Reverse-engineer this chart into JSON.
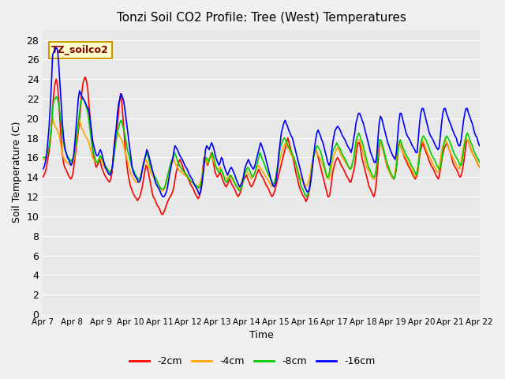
{
  "title": "Tonzi Soil CO2 Profile: Tree (West) Temperatures",
  "xlabel": "Time",
  "ylabel": "Soil Temperature (C)",
  "annotation": "TZ_soilco2",
  "ylim": [
    0,
    29
  ],
  "yticks": [
    0,
    2,
    4,
    6,
    8,
    10,
    12,
    14,
    16,
    18,
    20,
    22,
    24,
    26,
    28
  ],
  "legend_labels": [
    "-2cm",
    "-4cm",
    "-8cm",
    "-16cm"
  ],
  "legend_colors": [
    "#ff0000",
    "#ffa500",
    "#00cc00",
    "#0000ff"
  ],
  "x_tick_labels": [
    "Apr 7",
    "Apr 8",
    "Apr 9",
    "Apr 10",
    "Apr 11",
    "Apr 12",
    "Apr 13",
    "Apr 14",
    "Apr 15",
    "Apr 16",
    "Apr 17",
    "Apr 18",
    "Apr 19",
    "Apr 20",
    "Apr 21",
    "Apr 22"
  ],
  "series": {
    "s2cm": [
      14.0,
      14.2,
      14.5,
      15.0,
      15.8,
      16.5,
      17.5,
      19.0,
      21.0,
      22.5,
      23.5,
      24.0,
      23.5,
      22.0,
      20.0,
      18.0,
      16.5,
      15.5,
      15.0,
      14.8,
      14.5,
      14.2,
      14.0,
      13.8,
      14.0,
      14.5,
      15.5,
      16.5,
      17.5,
      18.5,
      19.5,
      21.0,
      22.5,
      23.5,
      24.0,
      24.2,
      23.8,
      23.0,
      21.5,
      20.0,
      18.5,
      17.0,
      16.0,
      15.5,
      15.0,
      15.2,
      15.5,
      15.8,
      15.2,
      14.8,
      14.5,
      14.2,
      14.0,
      13.8,
      13.6,
      13.5,
      13.8,
      14.5,
      16.0,
      17.5,
      18.5,
      19.0,
      20.0,
      21.5,
      22.5,
      21.8,
      20.2,
      18.5,
      16.8,
      15.5,
      14.5,
      13.8,
      13.2,
      12.8,
      12.5,
      12.2,
      12.0,
      11.8,
      11.6,
      11.8,
      12.0,
      12.5,
      13.0,
      13.8,
      14.5,
      15.2,
      15.0,
      14.5,
      13.8,
      13.2,
      12.5,
      12.0,
      11.8,
      11.5,
      11.2,
      11.0,
      10.8,
      10.5,
      10.2,
      10.2,
      10.5,
      10.8,
      11.2,
      11.5,
      11.8,
      12.0,
      12.2,
      12.5,
      13.0,
      13.8,
      14.5,
      15.0,
      15.5,
      15.8,
      15.5,
      15.2,
      14.8,
      14.5,
      14.2,
      14.0,
      13.8,
      13.5,
      13.2,
      13.0,
      12.8,
      12.5,
      12.2,
      12.0,
      11.8,
      12.0,
      12.5,
      13.5,
      15.0,
      16.0,
      15.8,
      15.5,
      15.2,
      15.8,
      16.0,
      16.5,
      15.8,
      15.2,
      14.5,
      14.2,
      14.0,
      14.2,
      14.5,
      14.2,
      13.8,
      13.5,
      13.2,
      13.0,
      13.2,
      13.5,
      13.8,
      13.5,
      13.2,
      13.0,
      12.8,
      12.5,
      12.2,
      12.0,
      12.2,
      12.5,
      13.0,
      13.5,
      13.8,
      14.0,
      14.2,
      13.8,
      13.5,
      13.2,
      13.0,
      13.2,
      13.5,
      13.8,
      14.2,
      14.5,
      14.8,
      14.5,
      14.2,
      14.0,
      13.8,
      13.5,
      13.2,
      13.0,
      12.8,
      12.5,
      12.2,
      12.0,
      12.2,
      12.5,
      13.0,
      13.5,
      14.0,
      14.5,
      15.0,
      15.5,
      16.0,
      16.5,
      17.0,
      17.5,
      18.0,
      17.5,
      17.0,
      16.5,
      16.0,
      15.5,
      14.8,
      14.2,
      13.8,
      13.2,
      12.8,
      12.5,
      12.2,
      12.0,
      11.8,
      11.5,
      11.8,
      12.2,
      13.0,
      14.0,
      15.0,
      16.0,
      16.5,
      16.8,
      16.5,
      16.0,
      15.5,
      15.0,
      14.5,
      14.0,
      13.5,
      13.0,
      12.5,
      12.0,
      12.0,
      12.5,
      13.5,
      14.5,
      15.0,
      15.5,
      15.8,
      16.0,
      15.8,
      15.5,
      15.2,
      15.0,
      14.8,
      14.5,
      14.2,
      14.0,
      13.8,
      13.5,
      13.5,
      14.0,
      14.5,
      15.0,
      16.0,
      17.0,
      17.5,
      17.5,
      16.8,
      16.0,
      15.5,
      15.0,
      14.5,
      14.0,
      13.5,
      13.0,
      12.8,
      12.5,
      12.2,
      12.0,
      12.5,
      13.5,
      15.0,
      16.5,
      17.5,
      17.5,
      17.0,
      16.5,
      16.0,
      15.5,
      15.0,
      14.8,
      14.5,
      14.2,
      14.0,
      13.8,
      14.0,
      14.5,
      15.5,
      17.0,
      17.5,
      17.2,
      16.8,
      16.5,
      16.0,
      15.8,
      15.5,
      15.2,
      15.0,
      14.8,
      14.5,
      14.2,
      14.0,
      13.8,
      14.0,
      14.5,
      15.5,
      16.5,
      17.0,
      17.5,
      17.2,
      16.8,
      16.5,
      16.2,
      15.8,
      15.5,
      15.2,
      15.0,
      14.8,
      14.5,
      14.2,
      14.0,
      13.8,
      14.2,
      15.0,
      15.8,
      16.5,
      17.0,
      17.2,
      17.5,
      17.2,
      16.8,
      16.5,
      16.0,
      15.5,
      15.2,
      15.0,
      14.8,
      14.5,
      14.2,
      14.0,
      14.2,
      14.8,
      15.5,
      16.5,
      17.5,
      17.8,
      17.5,
      17.2,
      16.8,
      16.5,
      16.2,
      16.0,
      15.8,
      15.5,
      15.2,
      15.0
    ],
    "s4cm": [
      15.8,
      15.8,
      15.8,
      16.0,
      16.5,
      17.2,
      18.0,
      19.2,
      20.5,
      19.5,
      19.2,
      19.0,
      18.8,
      18.5,
      17.8,
      17.2,
      16.5,
      16.0,
      15.8,
      15.6,
      15.5,
      15.4,
      15.3,
      15.2,
      15.3,
      15.5,
      16.0,
      17.0,
      18.0,
      19.0,
      20.0,
      19.5,
      19.0,
      18.8,
      18.5,
      18.2,
      18.0,
      17.8,
      17.5,
      17.0,
      16.5,
      16.0,
      15.8,
      15.6,
      15.5,
      15.5,
      15.8,
      16.0,
      15.8,
      15.5,
      15.2,
      15.0,
      14.8,
      14.6,
      14.5,
      14.4,
      14.5,
      14.8,
      15.5,
      16.5,
      17.5,
      18.0,
      18.5,
      18.2,
      18.0,
      17.8,
      17.5,
      17.0,
      16.5,
      16.0,
      15.5,
      15.0,
      14.5,
      14.2,
      14.0,
      13.8,
      13.6,
      13.5,
      13.4,
      13.5,
      13.8,
      14.2,
      14.8,
      15.2,
      15.5,
      15.8,
      15.5,
      15.2,
      14.8,
      14.5,
      14.2,
      14.0,
      13.8,
      13.6,
      13.4,
      13.2,
      13.0,
      12.8,
      12.6,
      12.6,
      12.8,
      13.0,
      13.5,
      14.0,
      14.5,
      15.0,
      15.2,
      15.5,
      15.8,
      15.5,
      15.2,
      15.0,
      14.8,
      14.6,
      14.5,
      14.4,
      14.3,
      14.2,
      14.1,
      14.0,
      13.9,
      13.8,
      13.6,
      13.5,
      13.4,
      13.3,
      13.2,
      13.1,
      13.0,
      13.2,
      13.5,
      14.0,
      14.8,
      15.5,
      15.8,
      15.6,
      15.4,
      15.8,
      16.0,
      16.2,
      15.8,
      15.5,
      15.2,
      15.0,
      14.8,
      14.8,
      15.0,
      14.8,
      14.5,
      14.2,
      14.0,
      13.8,
      13.9,
      14.0,
      14.2,
      14.0,
      13.8,
      13.6,
      13.4,
      13.2,
      13.0,
      12.8,
      13.0,
      13.2,
      13.5,
      14.0,
      14.2,
      14.5,
      14.6,
      14.4,
      14.2,
      14.0,
      13.8,
      14.0,
      14.2,
      14.5,
      14.8,
      15.0,
      15.2,
      15.0,
      14.8,
      14.6,
      14.4,
      14.2,
      14.0,
      13.8,
      13.6,
      13.4,
      13.2,
      13.0,
      13.2,
      13.5,
      14.0,
      14.5,
      15.0,
      15.5,
      16.0,
      16.5,
      17.0,
      17.2,
      17.5,
      17.2,
      17.0,
      16.8,
      16.5,
      16.2,
      16.0,
      15.8,
      15.5,
      15.2,
      14.8,
      14.4,
      14.0,
      13.8,
      13.6,
      13.4,
      13.2,
      13.0,
      13.2,
      13.5,
      14.0,
      14.8,
      15.5,
      16.0,
      16.5,
      16.8,
      16.5,
      16.2,
      16.0,
      15.8,
      15.5,
      15.2,
      14.8,
      14.4,
      14.0,
      13.8,
      13.8,
      14.2,
      15.0,
      15.8,
      16.2,
      16.5,
      16.8,
      17.0,
      16.8,
      16.5,
      16.2,
      16.0,
      15.8,
      15.6,
      15.4,
      15.2,
      15.0,
      14.8,
      14.8,
      15.2,
      15.8,
      16.2,
      17.0,
      17.5,
      17.8,
      17.8,
      17.5,
      17.0,
      16.5,
      16.0,
      15.5,
      15.0,
      14.8,
      14.5,
      14.2,
      14.0,
      13.8,
      13.8,
      14.2,
      15.0,
      16.0,
      17.0,
      17.5,
      17.5,
      17.0,
      16.5,
      16.0,
      15.5,
      15.2,
      14.8,
      14.5,
      14.2,
      14.0,
      13.8,
      14.2,
      15.0,
      16.2,
      17.2,
      17.5,
      17.2,
      16.8,
      16.5,
      16.2,
      16.0,
      15.8,
      15.5,
      15.2,
      15.0,
      14.8,
      14.5,
      14.2,
      14.0,
      14.2,
      15.0,
      16.2,
      17.0,
      17.5,
      17.8,
      17.5,
      17.2,
      16.8,
      16.5,
      16.2,
      16.0,
      15.8,
      15.5,
      15.2,
      15.0,
      14.8,
      14.5,
      14.5,
      15.2,
      16.0,
      16.8,
      17.2,
      17.5,
      17.8,
      17.5,
      17.2,
      16.8,
      16.5,
      16.2,
      16.0,
      15.8,
      15.5,
      15.2,
      15.0,
      14.8,
      15.0,
      15.8,
      16.5,
      17.2,
      17.8,
      18.0,
      17.8,
      17.5,
      17.2,
      16.8,
      16.5,
      16.2,
      16.0,
      15.8,
      15.5,
      15.2,
      15.0
    ],
    "s8cm": [
      16.0,
      16.0,
      16.0,
      16.2,
      16.5,
      17.0,
      17.8,
      19.0,
      21.0,
      21.8,
      22.0,
      22.2,
      22.0,
      21.5,
      20.5,
      19.5,
      18.5,
      17.5,
      16.8,
      16.5,
      16.2,
      16.0,
      15.8,
      15.6,
      15.8,
      16.0,
      16.5,
      17.5,
      18.5,
      19.5,
      20.5,
      21.5,
      22.0,
      22.0,
      21.8,
      21.5,
      21.0,
      20.5,
      19.5,
      18.5,
      17.5,
      16.8,
      16.2,
      15.8,
      15.5,
      15.5,
      15.8,
      16.2,
      16.0,
      15.8,
      15.5,
      15.2,
      15.0,
      14.8,
      14.6,
      14.5,
      14.6,
      15.0,
      15.8,
      16.8,
      17.8,
      18.5,
      19.0,
      19.5,
      19.8,
      19.5,
      19.0,
      18.5,
      17.8,
      17.0,
      16.5,
      16.0,
      15.5,
      15.0,
      14.8,
      14.5,
      14.2,
      14.0,
      13.8,
      13.8,
      14.0,
      14.5,
      15.0,
      15.5,
      16.0,
      16.5,
      16.2,
      15.8,
      15.2,
      14.8,
      14.5,
      14.2,
      14.0,
      13.8,
      13.5,
      13.2,
      13.0,
      12.8,
      12.8,
      12.8,
      13.0,
      13.5,
      14.0,
      14.5,
      15.0,
      15.5,
      15.8,
      16.0,
      16.5,
      16.2,
      15.8,
      15.5,
      15.2,
      15.0,
      14.8,
      14.6,
      14.5,
      14.4,
      14.2,
      14.0,
      13.8,
      13.6,
      13.5,
      13.4,
      13.3,
      13.2,
      13.1,
      13.0,
      12.9,
      13.0,
      13.5,
      14.2,
      15.0,
      15.8,
      16.0,
      15.8,
      15.5,
      16.0,
      16.2,
      16.5,
      16.0,
      15.5,
      15.0,
      14.8,
      14.5,
      14.5,
      14.8,
      14.5,
      14.2,
      13.8,
      13.5,
      13.5,
      13.8,
      14.0,
      14.2,
      14.0,
      13.8,
      13.5,
      13.2,
      13.0,
      12.8,
      12.6,
      12.8,
      13.0,
      13.5,
      14.0,
      14.5,
      14.8,
      15.0,
      14.8,
      14.5,
      14.2,
      14.0,
      14.2,
      14.5,
      15.0,
      15.5,
      16.0,
      16.5,
      16.2,
      15.8,
      15.5,
      15.2,
      14.8,
      14.5,
      14.2,
      14.0,
      13.8,
      13.5,
      13.2,
      13.5,
      14.0,
      14.8,
      15.5,
      16.5,
      17.2,
      17.5,
      17.8,
      18.0,
      17.8,
      17.5,
      17.2,
      17.0,
      16.8,
      16.5,
      16.2,
      16.0,
      15.5,
      15.0,
      14.5,
      14.0,
      13.5,
      13.0,
      12.8,
      12.5,
      12.2,
      12.0,
      12.2,
      12.5,
      13.2,
      14.0,
      15.2,
      16.0,
      16.5,
      17.0,
      17.2,
      17.0,
      16.8,
      16.5,
      16.0,
      15.5,
      15.0,
      14.5,
      14.0,
      14.0,
      14.5,
      15.5,
      16.2,
      16.8,
      17.0,
      17.2,
      17.5,
      17.2,
      17.0,
      16.8,
      16.5,
      16.2,
      16.0,
      15.8,
      15.5,
      15.2,
      15.0,
      14.8,
      15.0,
      15.5,
      16.0,
      17.0,
      17.8,
      18.2,
      18.5,
      18.2,
      17.8,
      17.5,
      17.0,
      16.5,
      16.0,
      15.5,
      15.0,
      14.8,
      14.5,
      14.2,
      14.0,
      14.0,
      14.5,
      15.5,
      17.0,
      17.8,
      17.8,
      17.5,
      17.0,
      16.5,
      16.0,
      15.5,
      15.2,
      14.8,
      14.5,
      14.2,
      14.0,
      13.8,
      14.2,
      15.2,
      16.5,
      17.5,
      17.8,
      17.5,
      17.0,
      16.8,
      16.5,
      16.2,
      16.0,
      15.8,
      15.5,
      15.2,
      15.0,
      14.8,
      14.5,
      14.2,
      14.5,
      15.2,
      16.5,
      17.5,
      18.0,
      18.2,
      18.0,
      17.8,
      17.5,
      17.2,
      16.8,
      16.5,
      16.2,
      16.0,
      15.8,
      15.5,
      15.2,
      15.0,
      14.8,
      15.0,
      15.8,
      16.8,
      17.5,
      18.0,
      18.2,
      18.0,
      17.8,
      17.5,
      17.2,
      16.8,
      16.5,
      16.2,
      16.0,
      15.8,
      15.5,
      15.2,
      15.2,
      15.8,
      16.8,
      17.5,
      18.2,
      18.5,
      18.2,
      17.8,
      17.5,
      17.2,
      16.8,
      16.5,
      16.2,
      16.0,
      15.8,
      15.5
    ],
    "s16cm": [
      14.8,
      15.0,
      15.5,
      16.2,
      17.5,
      19.0,
      21.0,
      23.5,
      26.5,
      26.8,
      27.0,
      27.2,
      27.0,
      25.5,
      23.5,
      21.5,
      19.5,
      18.0,
      17.0,
      16.5,
      16.0,
      15.8,
      15.5,
      15.2,
      15.5,
      16.0,
      17.2,
      18.8,
      20.5,
      22.0,
      22.8,
      22.5,
      22.2,
      22.0,
      21.8,
      21.5,
      21.2,
      21.0,
      20.5,
      19.5,
      18.5,
      17.5,
      17.0,
      16.5,
      16.2,
      16.2,
      16.5,
      16.8,
      16.5,
      16.0,
      15.5,
      15.0,
      14.8,
      14.5,
      14.3,
      14.2,
      14.5,
      15.2,
      16.5,
      17.8,
      19.0,
      20.5,
      21.5,
      22.0,
      22.5,
      22.2,
      21.8,
      21.0,
      20.0,
      19.0,
      18.0,
      17.0,
      16.0,
      15.0,
      14.5,
      14.2,
      14.0,
      13.8,
      13.5,
      13.5,
      13.8,
      14.5,
      15.2,
      15.8,
      16.2,
      16.8,
      16.5,
      16.0,
      15.5,
      15.0,
      14.5,
      14.0,
      13.5,
      13.2,
      13.0,
      12.8,
      12.5,
      12.2,
      12.0,
      12.0,
      12.2,
      12.5,
      13.0,
      13.8,
      14.5,
      15.2,
      15.8,
      16.5,
      17.2,
      17.0,
      16.8,
      16.5,
      16.2,
      16.0,
      15.8,
      15.5,
      15.2,
      15.0,
      14.8,
      14.5,
      14.2,
      14.0,
      13.8,
      13.5,
      13.2,
      13.0,
      12.8,
      12.5,
      12.2,
      12.5,
      13.2,
      14.2,
      15.5,
      16.8,
      17.2,
      17.0,
      16.8,
      17.2,
      17.5,
      17.2,
      16.8,
      16.2,
      15.8,
      15.5,
      15.2,
      15.5,
      16.0,
      15.8,
      15.2,
      14.8,
      14.5,
      14.2,
      14.5,
      14.8,
      15.0,
      14.8,
      14.5,
      14.2,
      13.8,
      13.5,
      13.2,
      13.0,
      13.2,
      13.5,
      14.0,
      14.8,
      15.2,
      15.5,
      15.8,
      15.5,
      15.2,
      15.0,
      14.8,
      15.0,
      15.5,
      16.0,
      16.5,
      17.0,
      17.5,
      17.2,
      16.8,
      16.5,
      16.0,
      15.5,
      15.0,
      14.5,
      14.0,
      13.5,
      13.2,
      13.0,
      13.2,
      13.8,
      15.0,
      16.5,
      17.5,
      18.5,
      19.0,
      19.5,
      19.8,
      19.5,
      19.2,
      18.8,
      18.5,
      18.2,
      18.0,
      17.5,
      17.0,
      16.5,
      16.0,
      15.5,
      15.0,
      14.5,
      14.0,
      13.5,
      13.0,
      12.8,
      12.5,
      12.5,
      12.8,
      13.5,
      14.5,
      15.8,
      16.8,
      17.8,
      18.5,
      18.8,
      18.5,
      18.2,
      17.8,
      17.5,
      17.0,
      16.5,
      16.0,
      15.5,
      15.2,
      15.5,
      16.5,
      17.5,
      18.2,
      18.8,
      19.0,
      19.2,
      19.0,
      18.8,
      18.5,
      18.2,
      18.0,
      17.8,
      17.5,
      17.2,
      17.0,
      16.8,
      16.5,
      17.0,
      17.8,
      18.5,
      19.5,
      20.0,
      20.5,
      20.5,
      20.2,
      19.8,
      19.5,
      19.0,
      18.5,
      18.0,
      17.5,
      17.0,
      16.5,
      16.2,
      15.8,
      15.5,
      15.5,
      16.2,
      18.0,
      19.5,
      20.2,
      20.0,
      19.5,
      19.0,
      18.5,
      18.0,
      17.5,
      17.2,
      16.8,
      16.5,
      16.2,
      16.0,
      15.8,
      16.5,
      18.0,
      19.5,
      20.5,
      20.5,
      20.0,
      19.5,
      19.0,
      18.5,
      18.2,
      18.0,
      17.8,
      17.5,
      17.2,
      17.0,
      16.8,
      16.5,
      16.5,
      18.0,
      19.5,
      20.5,
      21.0,
      21.0,
      20.5,
      20.0,
      19.5,
      19.0,
      18.5,
      18.2,
      18.0,
      17.8,
      17.5,
      17.2,
      17.0,
      16.8,
      17.0,
      18.2,
      19.5,
      20.5,
      21.0,
      21.0,
      20.5,
      20.2,
      19.8,
      19.5,
      19.2,
      18.8,
      18.5,
      18.2,
      18.0,
      17.5,
      17.2,
      17.2,
      17.8,
      18.8,
      19.8,
      20.5,
      21.0,
      21.0,
      20.5,
      20.2,
      19.8,
      19.5,
      19.0,
      18.5,
      18.2,
      18.0,
      17.5,
      17.2
    ]
  }
}
